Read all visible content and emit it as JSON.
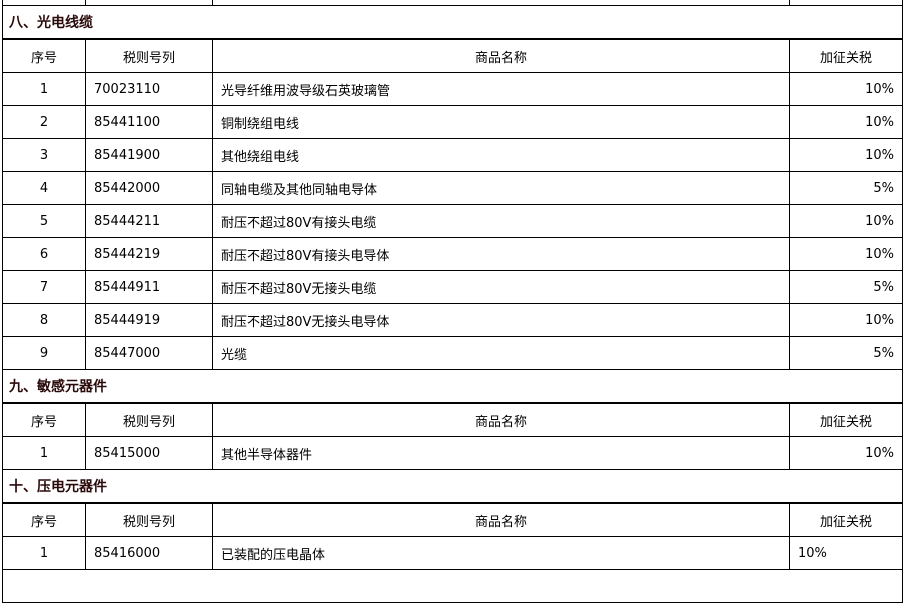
{
  "columns": {
    "no": "序号",
    "code": "税则号列",
    "name": "商品名称",
    "tariff": "加征关税"
  },
  "sections": [
    {
      "title": "八、光电线缆",
      "rows": [
        {
          "no": "1",
          "code": "70023110",
          "name": "光导纤维用波导级石英玻璃管",
          "tariff": "10%"
        },
        {
          "no": "2",
          "code": "85441100",
          "name": "铜制绕组电线",
          "tariff": "10%"
        },
        {
          "no": "3",
          "code": "85441900",
          "name": "其他绕组电线",
          "tariff": "10%"
        },
        {
          "no": "4",
          "code": "85442000",
          "name": "同轴电缆及其他同轴电导体",
          "tariff": "5%"
        },
        {
          "no": "5",
          "code": "85444211",
          "name": "耐压不超过80V有接头电缆",
          "tariff": "10%"
        },
        {
          "no": "6",
          "code": "85444219",
          "name": "耐压不超过80V有接头电导体",
          "tariff": "10%"
        },
        {
          "no": "7",
          "code": "85444911",
          "name": "耐压不超过80V无接头电缆",
          "tariff": "5%"
        },
        {
          "no": "8",
          "code": "85444919",
          "name": "耐压不超过80V无接头电导体",
          "tariff": "10%"
        },
        {
          "no": "9",
          "code": "85447000",
          "name": "光缆",
          "tariff": "5%"
        }
      ]
    },
    {
      "title": "九、敏感元器件",
      "rows": [
        {
          "no": "1",
          "code": "85415000",
          "name": "其他半导体器件",
          "tariff": "10%"
        }
      ]
    },
    {
      "title": "十、压电元器件",
      "rows": [
        {
          "no": "1",
          "code": "85416000",
          "name": "已装配的压电晶体",
          "tariff": "10%"
        }
      ]
    }
  ]
}
